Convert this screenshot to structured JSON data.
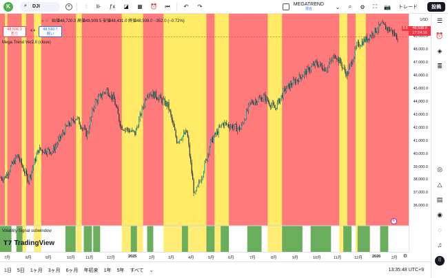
{
  "topbar": {
    "symbol": "DJI",
    "indicator_name": "MEGATREND",
    "indicator_sub": "混合",
    "trade_label": "トレード",
    "post_label": "投稿"
  },
  "legend": {
    "ohlc_text": "始値48,720.0  高値48,909.5  安値48,431.0  終値48,508.0  −352.0 (−0.72%)",
    "sell_price": "48,506.3",
    "sell_label": "売り",
    "spread": "4.4",
    "buy_price": "48,510.7",
    "buy_label": "買い",
    "indicator_label": "Mega Trend Ver2.0 (close)",
    "sub_label": "Volatility Signal subwindow",
    "logo_text": "TradingView"
  },
  "price_scale": {
    "currency": "USD",
    "labels": [
      "49,000.0",
      "48,000.0",
      "47,000.0",
      "46,000.0",
      "45,000.0",
      "44,000.0",
      "43,000.0",
      "42,000.0",
      "41,000.0",
      "40,000.0",
      "39,000.0",
      "38,000.0",
      "37,000.0",
      "36,000.0"
    ],
    "current_price": "48,508.0",
    "countdown": "17:24:16",
    "left_tag": "0.0"
  },
  "time_axis": {
    "labels": [
      "7月",
      "8月",
      "9月",
      "10月",
      "11月",
      "12月",
      "2025",
      "2月",
      "3月",
      "4月",
      "5月",
      "6月",
      "7月",
      "8月",
      "9月",
      "10月",
      "11月",
      "12月",
      "2026",
      "2月"
    ]
  },
  "bottombar": {
    "ranges": [
      "1日",
      "5日",
      "1ヶ月",
      "3ヶ月",
      "6ヶ月",
      "年初来",
      "1年",
      "5年",
      "すべて"
    ],
    "time": "13:35:48 UTC+9"
  },
  "colors": {
    "bear_zone": "#ff7b7b",
    "neutral_zone": "#ffeb66",
    "signal_bar": "#6aad5c",
    "accent": "#f23645"
  },
  "chart_data": {
    "type": "candlestick",
    "y_axis_range": [
      35800,
      49600
    ],
    "x_range": [
      "2024-06",
      "2026-02"
    ],
    "approx_close_path": [
      [
        "2024-07",
        38900
      ],
      [
        "2024-07-20",
        40400
      ],
      [
        "2024-08-05",
        38700
      ],
      [
        "2024-08-20",
        40800
      ],
      [
        "2024-09-10",
        40700
      ],
      [
        "2024-09-30",
        42300
      ],
      [
        "2024-10-15",
        43000
      ],
      [
        "2024-10-31",
        41800
      ],
      [
        "2024-11-11",
        44000
      ],
      [
        "2024-11-29",
        44900
      ],
      [
        "2024-12-10",
        44200
      ],
      [
        "2024-12-20",
        42400
      ],
      [
        "2025-01-10",
        41900
      ],
      [
        "2025-01-28",
        44700
      ],
      [
        "2025-02-10",
        44500
      ],
      [
        "2025-02-28",
        43800
      ],
      [
        "2025-03-13",
        41400
      ],
      [
        "2025-03-28",
        42000
      ],
      [
        "2025-04-08",
        37600
      ],
      [
        "2025-04-20",
        39200
      ],
      [
        "2025-05-02",
        41300
      ],
      [
        "2025-05-20",
        42600
      ],
      [
        "2025-06-15",
        42200
      ],
      [
        "2025-06-30",
        44000
      ],
      [
        "2025-07-20",
        44400
      ],
      [
        "2025-08-05",
        43600
      ],
      [
        "2025-08-20",
        44900
      ],
      [
        "2025-09-15",
        45900
      ],
      [
        "2025-10-05",
        46700
      ],
      [
        "2025-10-20",
        46300
      ],
      [
        "2025-11-03",
        47300
      ],
      [
        "2025-11-20",
        45900
      ],
      [
        "2025-12-05",
        47900
      ],
      [
        "2025-12-20",
        48400
      ],
      [
        "2026-01-10",
        49300
      ],
      [
        "2026-01-25",
        48900
      ],
      [
        "2026-02-01",
        48508
      ]
    ],
    "zones": [
      [
        "red",
        0.0,
        0.012
      ],
      [
        "yellow",
        0.012,
        0.018
      ],
      [
        "red",
        0.018,
        0.053
      ],
      [
        "yellow",
        0.053,
        0.064
      ],
      [
        "red",
        0.064,
        0.083
      ],
      [
        "yellow",
        0.083,
        0.101
      ],
      [
        "red",
        0.101,
        0.186
      ],
      [
        "yellow",
        0.186,
        0.2
      ],
      [
        "red",
        0.2,
        0.298
      ],
      [
        "yellow",
        0.298,
        0.35
      ],
      [
        "red",
        0.35,
        0.4
      ],
      [
        "yellow",
        0.4,
        0.505
      ],
      [
        "red",
        0.505,
        0.525
      ],
      [
        "yellow",
        0.525,
        0.56
      ],
      [
        "red",
        0.56,
        0.655
      ],
      [
        "yellow",
        0.655,
        0.69
      ],
      [
        "red",
        0.69,
        0.83
      ],
      [
        "yellow",
        0.83,
        0.85
      ],
      [
        "red",
        0.85,
        0.87
      ],
      [
        "yellow",
        0.87,
        0.895
      ],
      [
        "red",
        0.895,
        1.0
      ]
    ],
    "signal_bars": [
      [
        0.0,
        0.028
      ],
      [
        0.04,
        0.055
      ],
      [
        0.16,
        0.185
      ],
      [
        0.205,
        0.225
      ],
      [
        0.228,
        0.245
      ],
      [
        0.32,
        0.335
      ],
      [
        0.36,
        0.375
      ],
      [
        0.445,
        0.46
      ],
      [
        0.505,
        0.525
      ],
      [
        0.54,
        0.56
      ],
      [
        0.605,
        0.64
      ],
      [
        0.69,
        0.74
      ],
      [
        0.76,
        0.81
      ],
      [
        0.84,
        0.86
      ],
      [
        0.875,
        0.905
      ],
      [
        0.93,
        0.95
      ]
    ]
  }
}
